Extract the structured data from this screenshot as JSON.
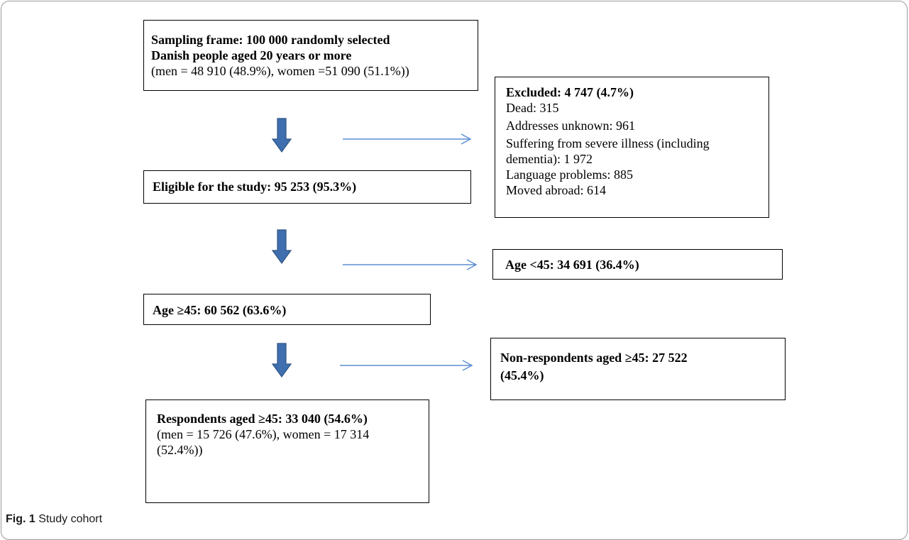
{
  "boxes": {
    "sampling": {
      "line1": "Sampling frame: 100 000 randomly selected",
      "line2": "Danish people aged 20 years or more",
      "line3": "(men = 48 910 (48.9%), women =51 090 (51.1%))"
    },
    "excluded": {
      "title": "Excluded: 4 747 (4.7%)",
      "items": [
        "Dead: 315",
        "Addresses unknown: 961",
        "Suffering from severe illness (including",
        "dementia): 1 972",
        "Language problems: 885",
        "Moved abroad: 614"
      ]
    },
    "eligible": {
      "title": "Eligible for the study:  95 253 (95.3%)"
    },
    "age_under": {
      "title": "Age <45: 34 691 (36.4%)"
    },
    "age_over": {
      "title": "Age ≥45: 60 562 (63.6%)"
    },
    "nonrespondents": {
      "line1": "Non-respondents aged ≥45:  27 522",
      "line2": "(45.4%)"
    },
    "respondents": {
      "title": "Respondents aged ≥45: 33 040 (54.6%)",
      "line2": "(men = 15 726 (47.6%), women = 17 314",
      "line3": "(52.4%))"
    }
  },
  "caption": {
    "label": "Fig. 1",
    "text": " Study cohort"
  },
  "colors": {
    "down_arrow": "#3f6fae",
    "down_arrow_stroke": "#2e5384",
    "right_arrow": "#5b8ed0"
  }
}
